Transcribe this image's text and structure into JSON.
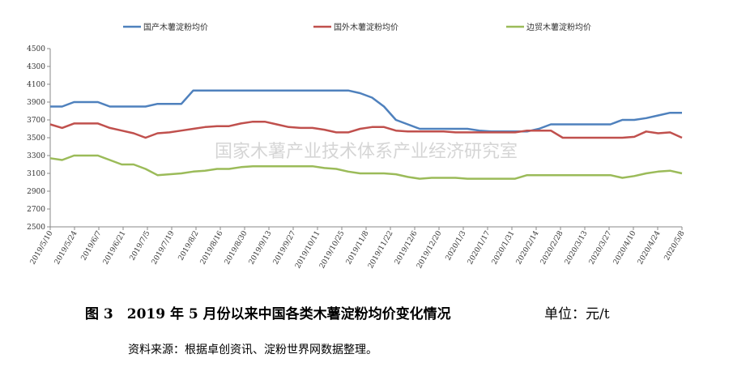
{
  "chart_data": {
    "type": "line",
    "title": "",
    "xlabel": "",
    "ylabel": "",
    "ylim": [
      2500,
      4500
    ],
    "yticks": [
      2500,
      2700,
      2900,
      3100,
      3300,
      3500,
      3700,
      3900,
      4100,
      4300,
      4500
    ],
    "x_tick_labels": [
      "2019/5/10",
      "2019/5/24",
      "2019/6/7",
      "2019/6/21",
      "2019/7/5",
      "2019/7/19",
      "2019/8/2",
      "2019/8/16",
      "2019/8/30",
      "2019/9/13",
      "2019/9/27",
      "2019/10/11",
      "2019/10/25",
      "2019/11/8",
      "2019/11/22",
      "2019/12/6",
      "2019/12/20",
      "2020/1/3",
      "2020/1/17",
      "2020/1/31",
      "2020/2/14",
      "2020/2/28",
      "2020/3/13",
      "2020/3/27",
      "2020/4/10",
      "2020/4/24",
      "2020/5/8"
    ],
    "legend_position": "top",
    "grid": false,
    "series": [
      {
        "name": "国产木薯淀粉均价",
        "color": "#4f81bd",
        "values": [
          3850,
          3850,
          3900,
          3900,
          3900,
          3850,
          3850,
          3850,
          3850,
          3880,
          3880,
          3880,
          4030,
          4030,
          4030,
          4030,
          4030,
          4030,
          4030,
          4030,
          4030,
          4030,
          4030,
          4030,
          4030,
          4030,
          4000,
          3950,
          3850,
          3700,
          3650,
          3600,
          3600,
          3600,
          3600,
          3600,
          3580,
          3570,
          3570,
          3570,
          3570,
          3600,
          3650,
          3650,
          3650,
          3650,
          3650,
          3650,
          3700,
          3700,
          3720,
          3750,
          3780,
          3780
        ]
      },
      {
        "name": "国外木薯淀粉均价",
        "color": "#c0504d",
        "values": [
          3650,
          3610,
          3660,
          3660,
          3660,
          3610,
          3580,
          3550,
          3500,
          3550,
          3560,
          3580,
          3600,
          3620,
          3630,
          3630,
          3660,
          3680,
          3680,
          3650,
          3620,
          3610,
          3610,
          3590,
          3560,
          3560,
          3600,
          3620,
          3620,
          3580,
          3570,
          3570,
          3570,
          3570,
          3560,
          3560,
          3560,
          3560,
          3560,
          3560,
          3580,
          3580,
          3580,
          3500,
          3500,
          3500,
          3500,
          3500,
          3500,
          3510,
          3570,
          3550,
          3560,
          3500
        ]
      },
      {
        "name": "边贸木薯淀粉均价",
        "color": "#9bbb59",
        "values": [
          3270,
          3250,
          3300,
          3300,
          3300,
          3250,
          3200,
          3200,
          3150,
          3080,
          3090,
          3100,
          3120,
          3130,
          3150,
          3150,
          3170,
          3180,
          3180,
          3180,
          3180,
          3180,
          3180,
          3160,
          3150,
          3120,
          3100,
          3100,
          3100,
          3090,
          3060,
          3040,
          3050,
          3050,
          3050,
          3040,
          3040,
          3040,
          3040,
          3040,
          3080,
          3080,
          3080,
          3080,
          3080,
          3080,
          3080,
          3080,
          3050,
          3070,
          3100,
          3120,
          3130,
          3100
        ]
      }
    ]
  },
  "watermark": "国家木薯产业技术体系产业经济研究室",
  "caption": {
    "title": "图 3　2019 年 5 月份以来中国各类木薯淀粉均价变化情况",
    "unit": "单位：元/t"
  },
  "source": "资料来源：根据卓创资讯、淀粉世界网数据整理。"
}
